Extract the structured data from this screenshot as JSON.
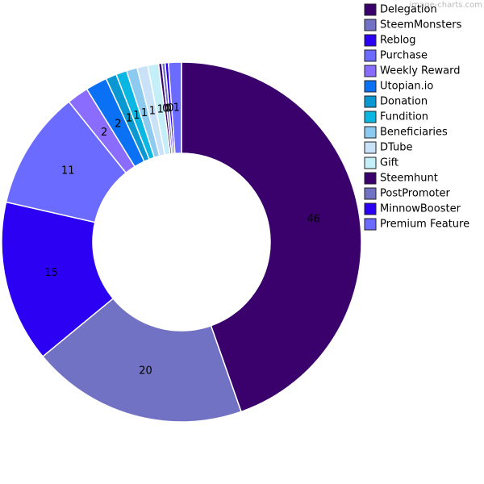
{
  "chart_data": {
    "type": "doughnut",
    "watermark": "image-charts.com",
    "categories": [
      "Delegation",
      "SteemMonsters",
      "Reblog",
      "Purchase",
      "Weekly Reward",
      "Utopian.io",
      "Donation",
      "Fundition",
      "Beneficiaries",
      "DTube",
      "Gift",
      "Steemhunt",
      "PostPromoter",
      "MinnowBooster",
      "Premium Feature"
    ],
    "values": [
      46,
      20,
      15,
      11,
      2,
      2,
      1,
      1,
      1,
      1,
      1,
      0.3,
      0.3,
      0.3,
      1.2
    ],
    "value_labels": [
      "46",
      "20",
      "15",
      "11",
      "2",
      "2",
      "1",
      "1",
      "1",
      "1",
      "1",
      "0",
      "0",
      "0",
      "1"
    ],
    "colors": [
      "#3a006c",
      "#7272c4",
      "#2c00f2",
      "#6b6bff",
      "#8a6cff",
      "#0a70f4",
      "#0a98d2",
      "#0ab6e2",
      "#8ccaf0",
      "#cae2f8",
      "#c4eef8",
      "#3a006c",
      "#7272c4",
      "#2c00f2",
      "#6b6bff"
    ],
    "legend": "right"
  }
}
